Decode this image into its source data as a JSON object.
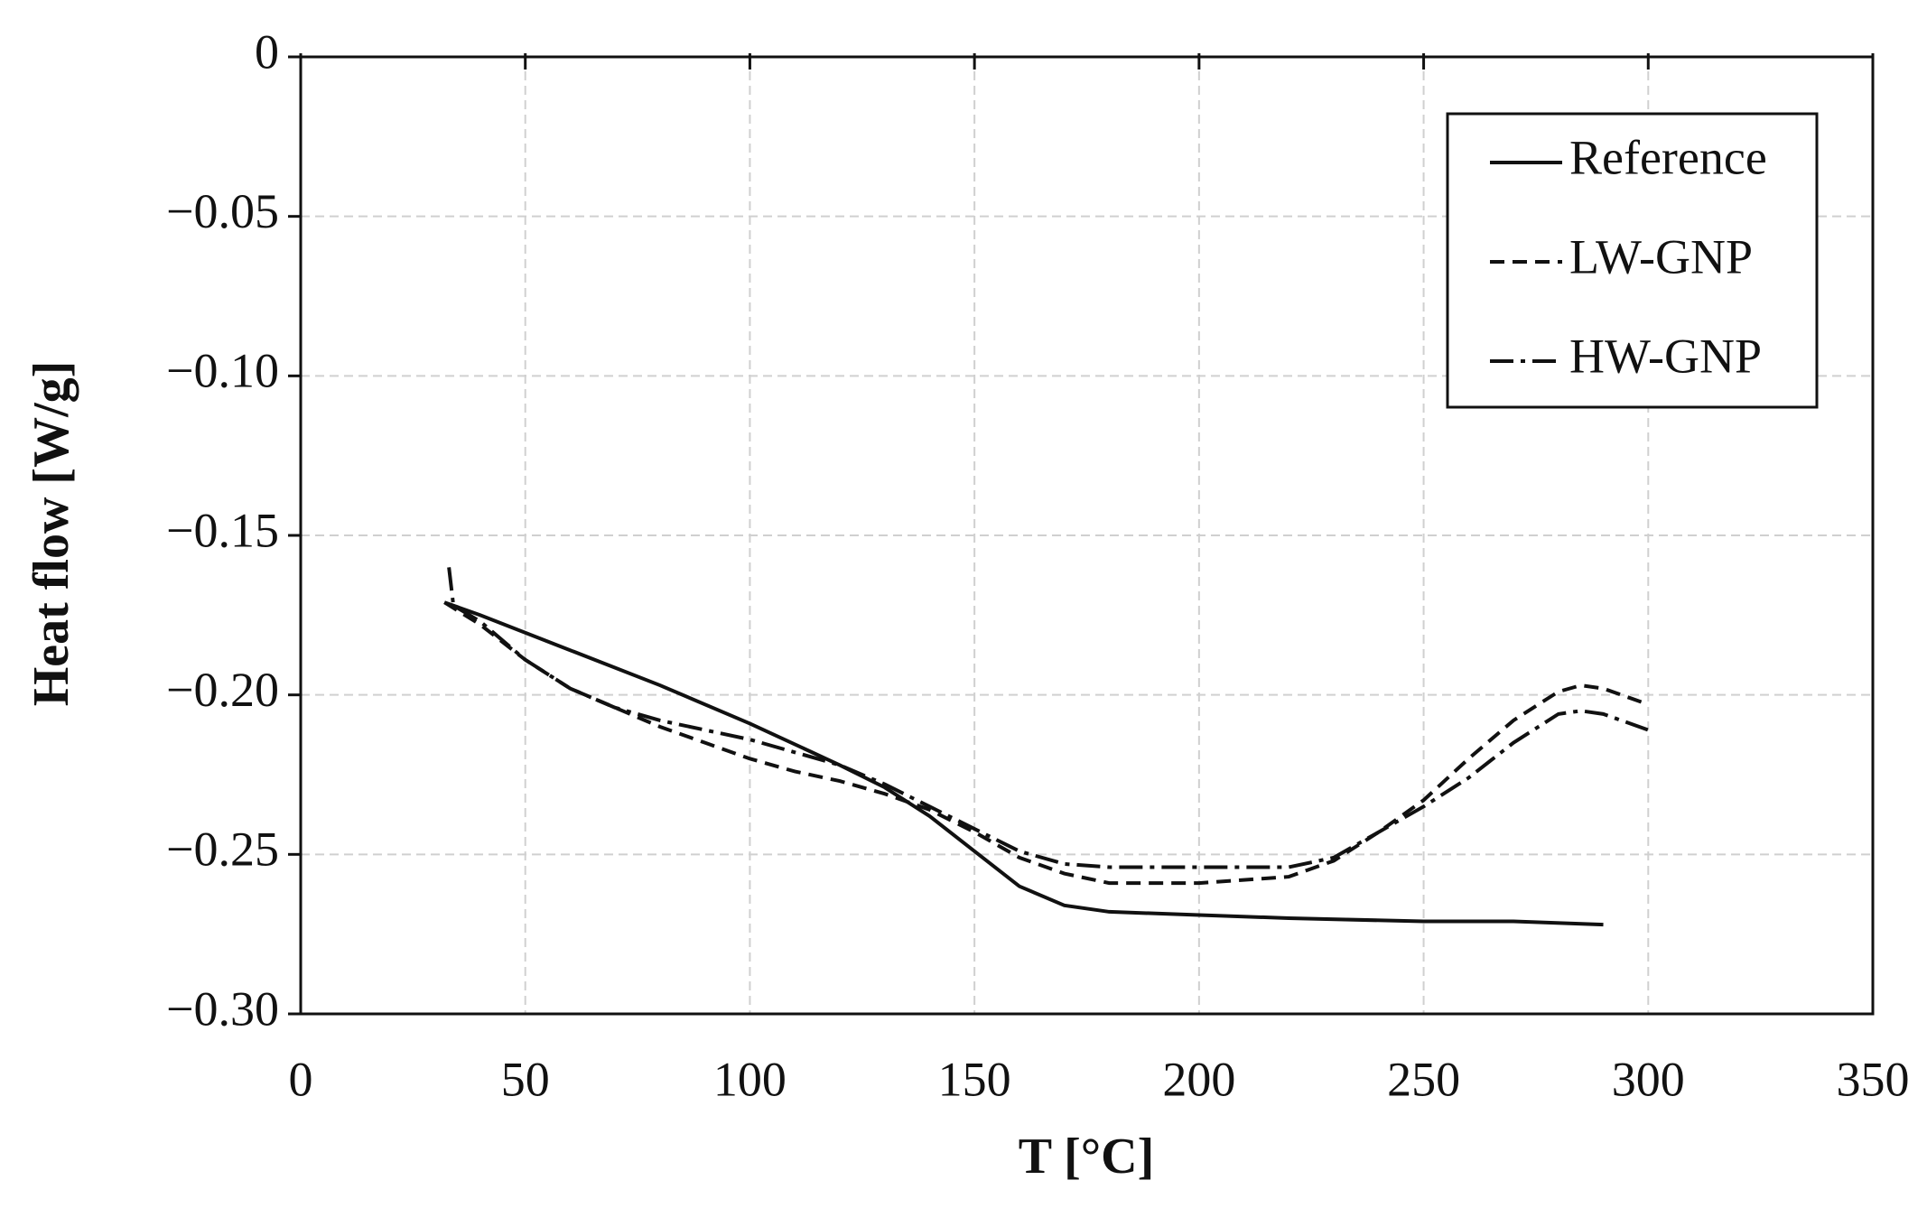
{
  "chart_data": {
    "type": "line",
    "xlabel": "T [°C]",
    "ylabel": "Heat flow [W/g]",
    "xlim": [
      0,
      350
    ],
    "xticks": [
      0,
      50,
      100,
      150,
      200,
      250,
      300,
      350
    ],
    "ylim": [
      -0.3,
      0
    ],
    "yticks": [
      {
        "value": -0.3,
        "label": "−0.30"
      },
      {
        "value": -0.25,
        "label": "−0.25"
      },
      {
        "value": -0.2,
        "label": "−0.20"
      },
      {
        "value": -0.15,
        "label": "−0.15"
      },
      {
        "value": -0.1,
        "label": "−0.10"
      },
      {
        "value": -0.05,
        "label": "−0.05"
      },
      0
    ],
    "grid": true,
    "legend": "upper right",
    "series": [
      {
        "name": "Reference",
        "color": "#111111",
        "dash": "solid",
        "x": [
          32,
          40,
          60,
          80,
          100,
          120,
          130,
          140,
          150,
          160,
          170,
          180,
          200,
          220,
          250,
          270,
          290
        ],
        "values": [
          -0.171,
          -0.175,
          -0.186,
          -0.197,
          -0.209,
          -0.222,
          -0.229,
          -0.238,
          -0.249,
          -0.26,
          -0.266,
          -0.268,
          -0.269,
          -0.27,
          -0.271,
          -0.271,
          -0.272
        ]
      },
      {
        "name": "LW-GNP",
        "color": "#111111",
        "dash": "dashed",
        "x": [
          32,
          40,
          50,
          60,
          70,
          80,
          90,
          100,
          110,
          120,
          130,
          140,
          150,
          160,
          170,
          180,
          200,
          220,
          230,
          240,
          250,
          260,
          270,
          280,
          285,
          290,
          300
        ],
        "values": [
          -0.171,
          -0.178,
          -0.189,
          -0.198,
          -0.204,
          -0.21,
          -0.215,
          -0.22,
          -0.224,
          -0.227,
          -0.231,
          -0.236,
          -0.243,
          -0.251,
          -0.256,
          -0.259,
          -0.259,
          -0.257,
          -0.252,
          -0.243,
          -0.233,
          -0.22,
          -0.208,
          -0.199,
          -0.197,
          -0.198,
          -0.203
        ]
      },
      {
        "name": "HW-GNP",
        "color": "#111111",
        "dash": "dashdot",
        "x": [
          33,
          34,
          40,
          50,
          60,
          70,
          80,
          90,
          100,
          110,
          120,
          130,
          140,
          150,
          160,
          170,
          180,
          200,
          220,
          230,
          240,
          250,
          260,
          270,
          280,
          285,
          290,
          300
        ],
        "values": [
          -0.16,
          -0.172,
          -0.177,
          -0.189,
          -0.198,
          -0.204,
          -0.208,
          -0.211,
          -0.214,
          -0.218,
          -0.222,
          -0.228,
          -0.235,
          -0.242,
          -0.249,
          -0.253,
          -0.254,
          -0.254,
          -0.254,
          -0.251,
          -0.243,
          -0.235,
          -0.226,
          -0.215,
          -0.206,
          -0.205,
          -0.206,
          -0.211
        ]
      }
    ]
  }
}
